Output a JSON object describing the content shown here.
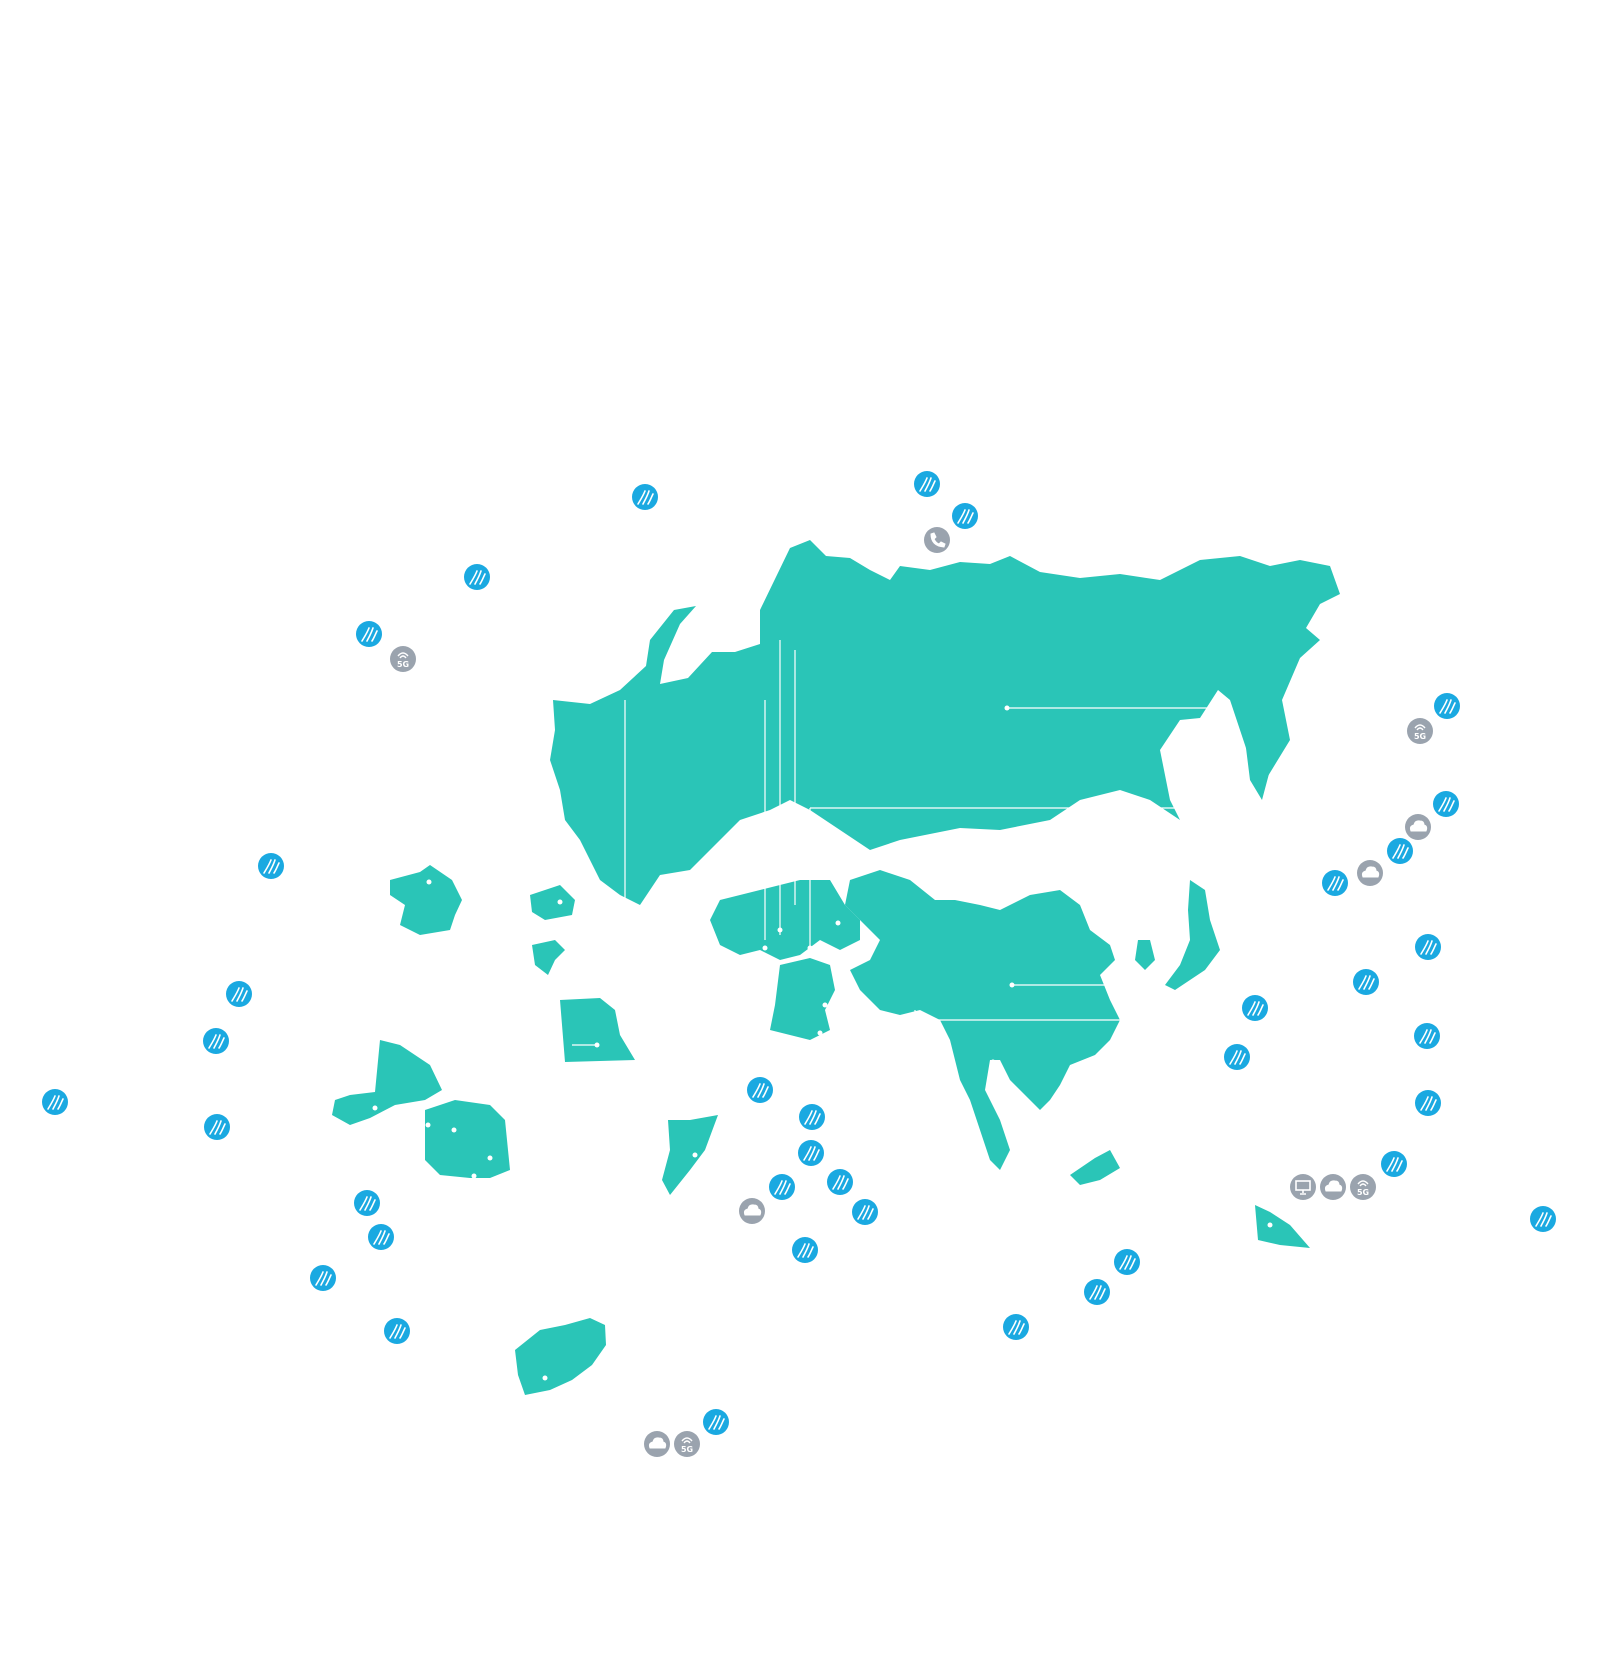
{
  "colors": {
    "land": "#2ac5b7",
    "fiber_marker": "#1aa9e1",
    "service_marker": "#9aa3ae"
  },
  "icons": {
    "fiber": "fiber-optic-cable-icon",
    "5g": "5g-signal-icon",
    "cloud": "cloud-icon",
    "phone": "phone-icon",
    "monitor": "monitor-icon"
  },
  "labels": {
    "5g": "5G"
  }
}
